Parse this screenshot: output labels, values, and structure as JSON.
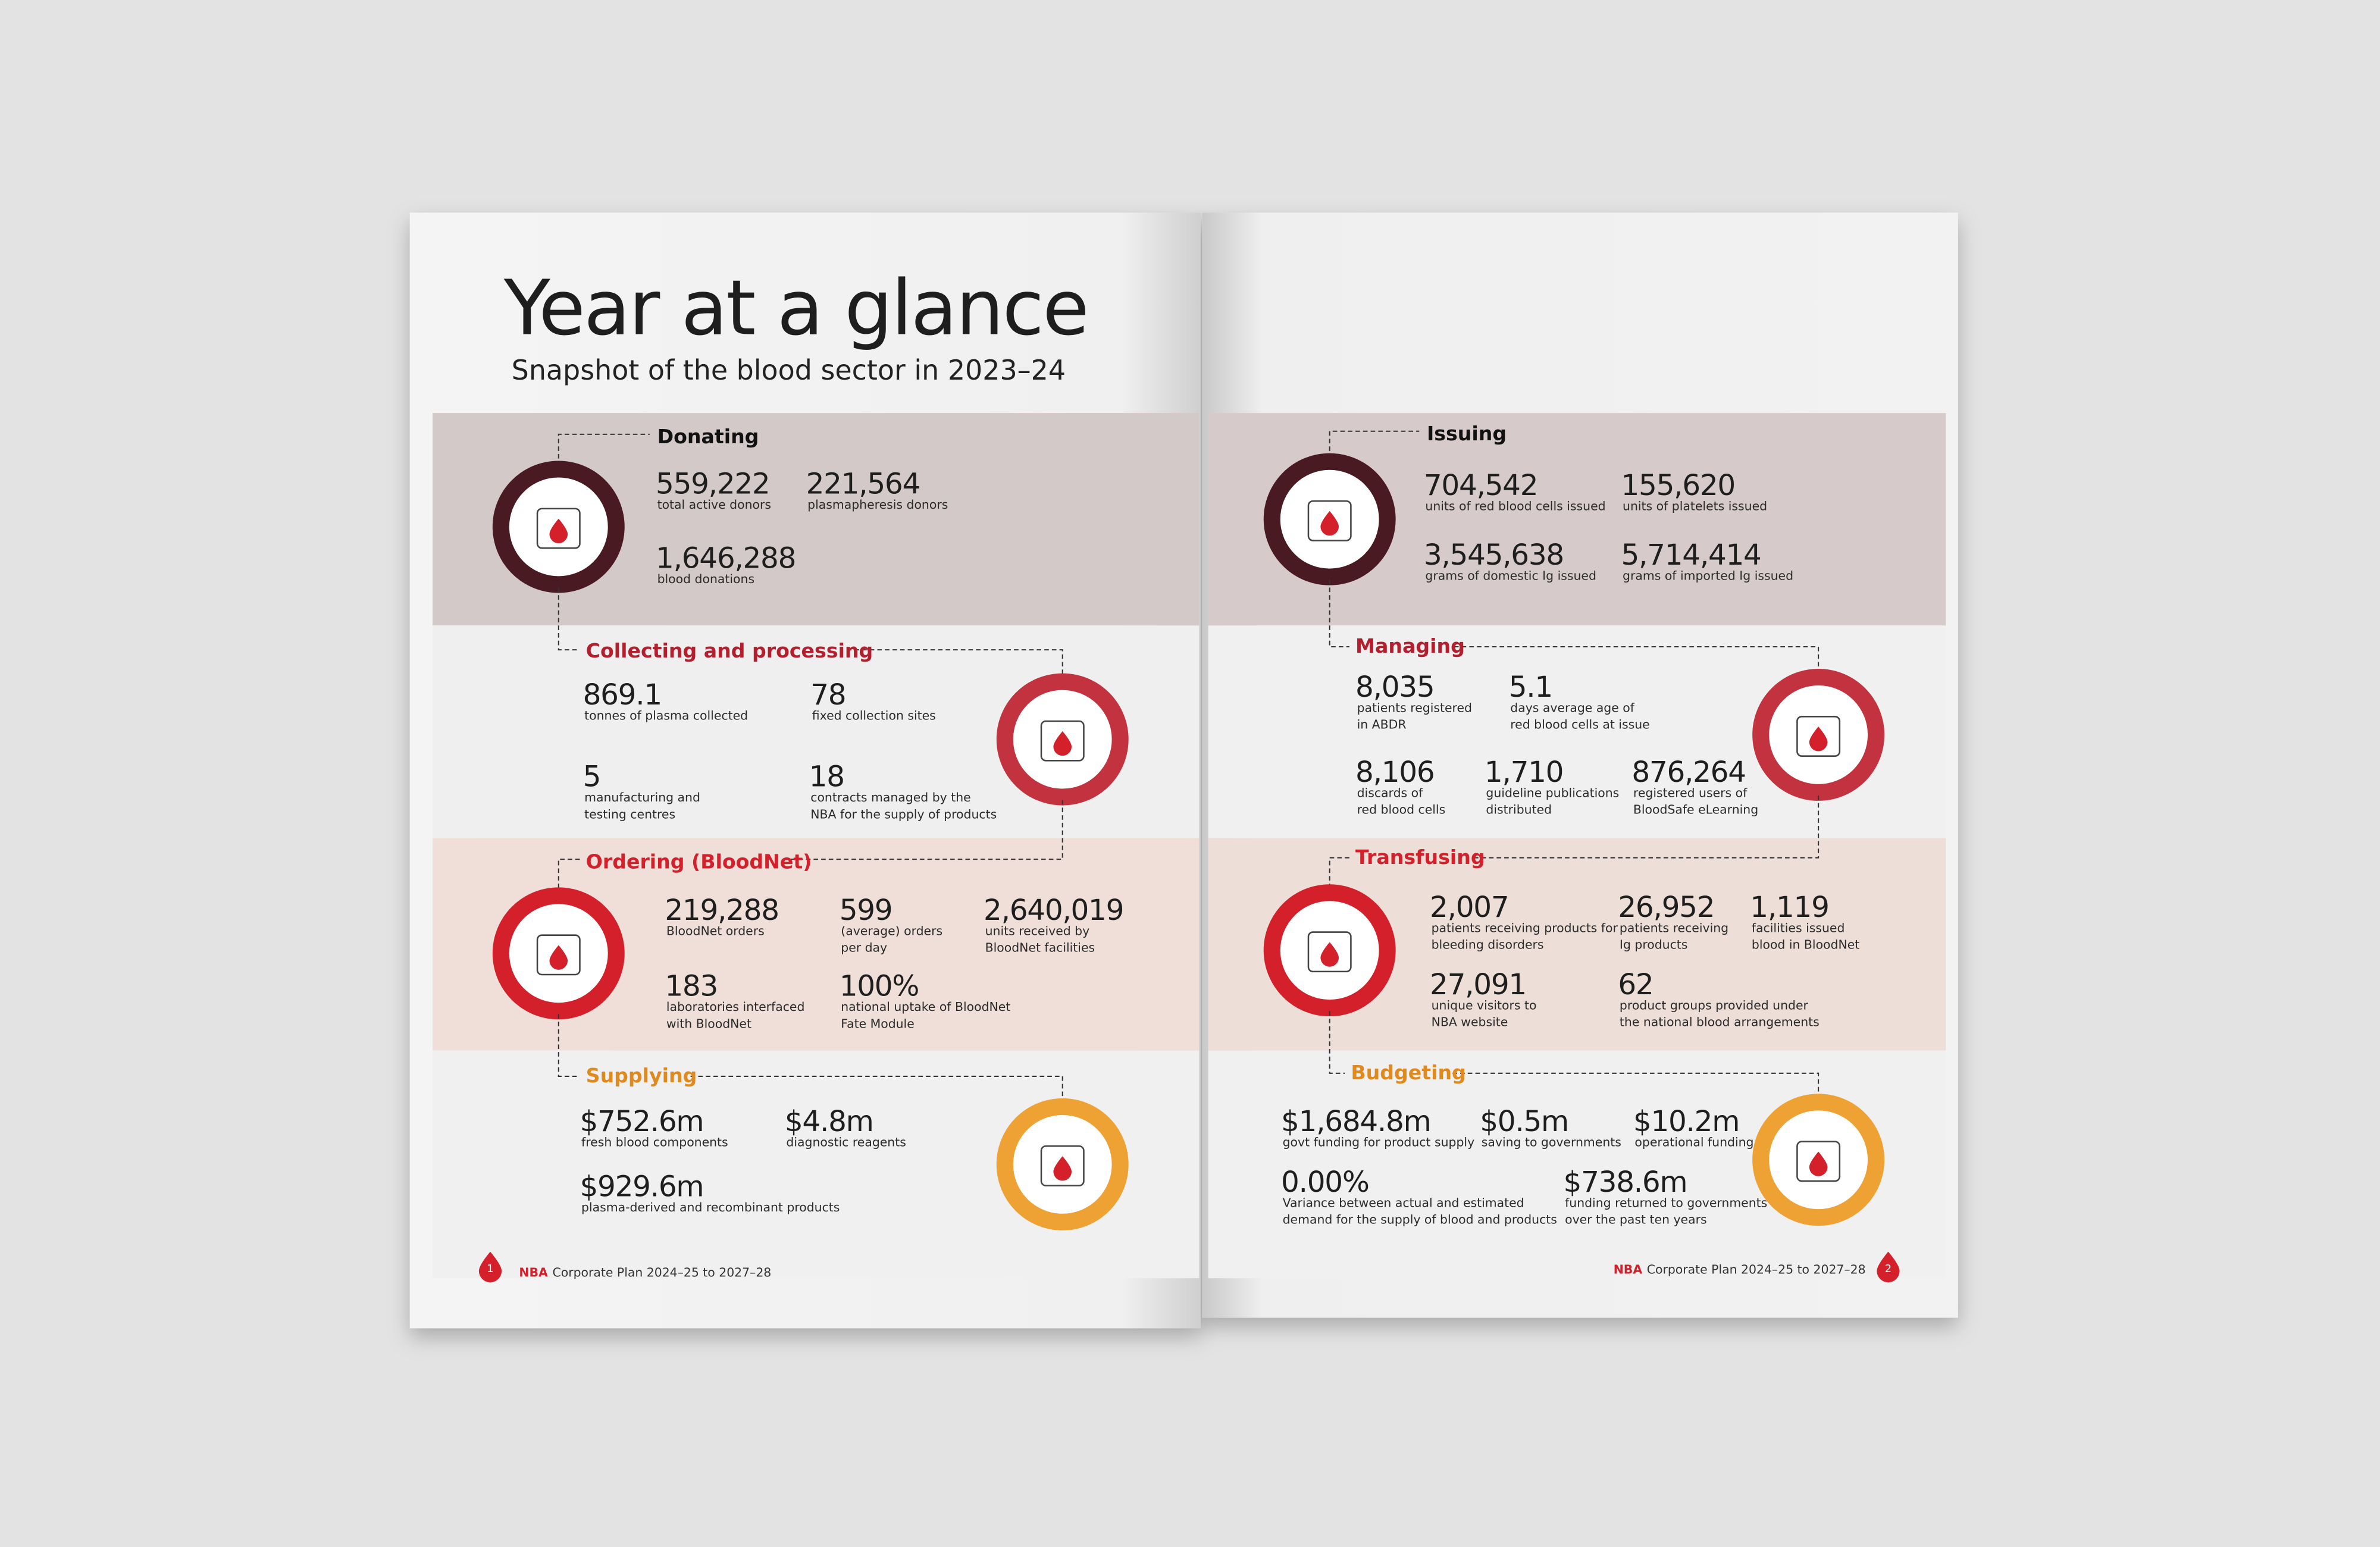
{
  "left_page": {
    "title": "Year at a glance",
    "subtitle": "Snapshot of the blood sector in 2023–24",
    "sections": [
      {
        "heading": "Donating",
        "stats": [
          {
            "value": "559,222",
            "label": [
              "total active donors"
            ]
          },
          {
            "value": "221,564",
            "label": [
              "plasmapheresis donors"
            ]
          },
          {
            "value": "1,646,288",
            "label": [
              "blood donations"
            ]
          }
        ]
      },
      {
        "heading": "Collecting and processing",
        "stats": [
          {
            "value": "869.1",
            "label": [
              "tonnes of plasma collected"
            ]
          },
          {
            "value": "78",
            "label": [
              "fixed collection sites"
            ]
          },
          {
            "value": "5",
            "label": [
              "manufacturing and",
              "testing centres"
            ]
          },
          {
            "value": "18",
            "label": [
              "contracts managed by the",
              "NBA for the supply of products"
            ]
          }
        ]
      },
      {
        "heading": "Ordering (BloodNet)",
        "stats": [
          {
            "value": "219,288",
            "label": [
              "BloodNet orders"
            ]
          },
          {
            "value": "599",
            "label": [
              "(average) orders",
              "per day"
            ]
          },
          {
            "value": "2,640,019",
            "label": [
              "units received by",
              "BloodNet facilities"
            ]
          },
          {
            "value": "183",
            "label": [
              "laboratories interfaced",
              "with BloodNet"
            ]
          },
          {
            "value": "100%",
            "label": [
              "national uptake of BloodNet",
              "Fate Module"
            ]
          }
        ]
      },
      {
        "heading": "Supplying",
        "stats": [
          {
            "value": "$752.6m",
            "label": [
              "fresh blood components"
            ]
          },
          {
            "value": "$4.8m",
            "label": [
              "diagnostic reagents"
            ]
          },
          {
            "value": "$929.6m",
            "label": [
              "plasma-derived and recombinant products"
            ]
          }
        ]
      }
    ],
    "footer": {
      "page": "1",
      "brand": "NBA",
      "text": "Corporate Plan 2024–25 to 2027–28"
    }
  },
  "right_page": {
    "sections": [
      {
        "heading": "Issuing",
        "stats": [
          {
            "value": "704,542",
            "label": [
              "units of red blood cells issued"
            ]
          },
          {
            "value": "155,620",
            "label": [
              "units of platelets issued"
            ]
          },
          {
            "value": "3,545,638",
            "label": [
              "grams of domestic Ig issued"
            ]
          },
          {
            "value": "5,714,414",
            "label": [
              "grams of imported Ig issued"
            ]
          }
        ]
      },
      {
        "heading": "Managing",
        "stats": [
          {
            "value": "8,035",
            "label": [
              "patients registered",
              "in ABDR"
            ]
          },
          {
            "value": "5.1",
            "label": [
              "days average age of",
              "red blood cells at issue"
            ]
          },
          {
            "value": "8,106",
            "label": [
              "discards of",
              "red blood cells"
            ]
          },
          {
            "value": "1,710",
            "label": [
              "guideline publications",
              "distributed"
            ]
          },
          {
            "value": "876,264",
            "label": [
              "registered users of",
              "BloodSafe eLearning"
            ]
          }
        ]
      },
      {
        "heading": "Transfusing",
        "stats": [
          {
            "value": "2,007",
            "label": [
              "patients receiving products for",
              "bleeding disorders"
            ]
          },
          {
            "value": "26,952",
            "label": [
              "patients receiving",
              "Ig products"
            ]
          },
          {
            "value": "1,119",
            "label": [
              "facilities issued",
              "blood in BloodNet"
            ]
          },
          {
            "value": "27,091",
            "label": [
              "unique visitors to",
              "NBA website"
            ]
          },
          {
            "value": "62",
            "label": [
              "product groups provided under",
              "the national blood arrangements"
            ]
          }
        ]
      },
      {
        "heading": "Budgeting",
        "stats": [
          {
            "value": "$1,684.8m",
            "label": [
              "govt funding for product supply"
            ]
          },
          {
            "value": "$0.5m",
            "label": [
              "saving to governments"
            ]
          },
          {
            "value": "$10.2m",
            "label": [
              "operational funding"
            ]
          },
          {
            "value": "0.00%",
            "label": [
              "Variance between actual and estimated",
              "demand for the supply of blood and products"
            ]
          },
          {
            "value": "$738.6m",
            "label": [
              "funding returned to governments",
              "over the past ten years"
            ]
          }
        ]
      }
    ],
    "footer": {
      "page": "2",
      "brand": "NBA",
      "text": "Corporate Plan 2024–25 to 2027–28"
    }
  }
}
